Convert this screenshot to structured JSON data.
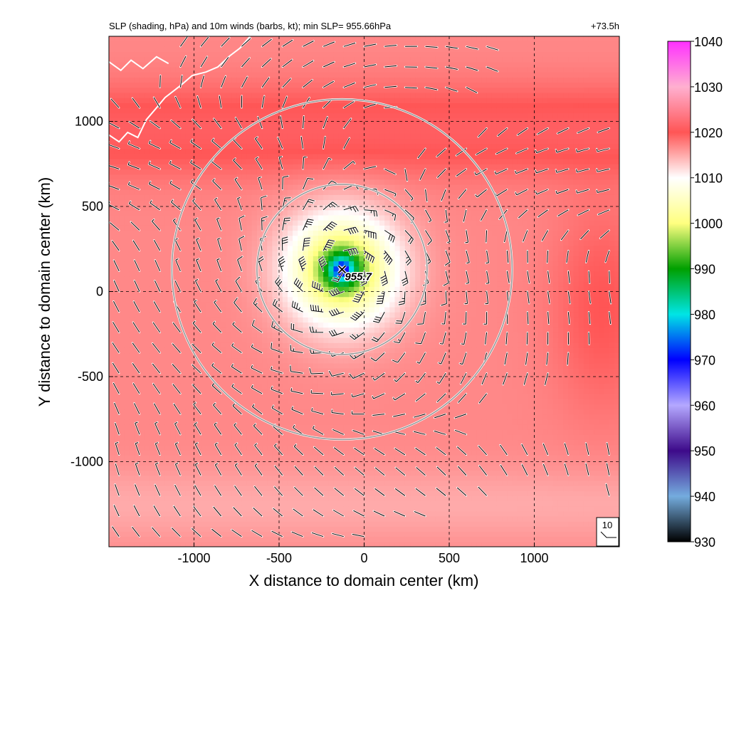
{
  "chart_data": {
    "type": "heatmap",
    "title": "SLP (shading, hPa) and 10m winds (barbs, kt); min SLP= 955.66hPa",
    "forecast_hour_label": "+73.5h",
    "xlabel": "X distance to domain center (km)",
    "ylabel": "Y distance to domain center (km)",
    "xlim": [
      -1500,
      1500
    ],
    "ylim": [
      -1500,
      1500
    ],
    "x_ticks": [
      -1000,
      -500,
      0,
      500,
      1000
    ],
    "y_ticks": [
      -1000,
      -500,
      0,
      500,
      1000
    ],
    "x_tick_labels": [
      "-1000",
      "-500",
      "0",
      "500",
      "1000"
    ],
    "y_tick_labels": [
      "-1000",
      "-500",
      "0",
      "500",
      "1000"
    ],
    "grid": true,
    "field": {
      "name": "SLP",
      "units": "hPa",
      "min_value": 955.66,
      "min_location": [
        -130,
        130
      ],
      "min_label": "955.7",
      "environment_value": 1017,
      "high_pressure_band_y": 950,
      "high_pressure_band_value": 1021
    },
    "range_rings": [
      {
        "center": [
          -130,
          130
        ],
        "radius_km": 500
      },
      {
        "center": [
          -130,
          130
        ],
        "radius_km": 1000
      }
    ],
    "colorbar": {
      "min": 930,
      "max": 1040,
      "ticks": [
        930,
        940,
        950,
        960,
        970,
        980,
        990,
        1000,
        1010,
        1020,
        1030,
        1040
      ],
      "tick_labels": [
        "930",
        "940",
        "950",
        "960",
        "970",
        "980",
        "990",
        "1000",
        "1010",
        "1020",
        "1030",
        "1040"
      ],
      "stops": [
        {
          "value": 930,
          "color": "#000000"
        },
        {
          "value": 940,
          "color": "#74acde"
        },
        {
          "value": 950,
          "color": "#3d0a8a"
        },
        {
          "value": 960,
          "color": "#b4a8ff"
        },
        {
          "value": 970,
          "color": "#0000ff"
        },
        {
          "value": 980,
          "color": "#00e5e5"
        },
        {
          "value": 990,
          "color": "#00a000"
        },
        {
          "value": 1000,
          "color": "#ffff80"
        },
        {
          "value": 1010,
          "color": "#ffffff"
        },
        {
          "value": 1020,
          "color": "#ff5555"
        },
        {
          "value": 1030,
          "color": "#ffb0d0"
        },
        {
          "value": 1040,
          "color": "#ff30ff"
        }
      ]
    },
    "reference_barb": {
      "label": "10",
      "speed_kt": 10
    },
    "wind_barbs": {
      "spacing_km": 120,
      "units": "kt"
    },
    "colors": {
      "ring": "#9a9a9a",
      "coastline": "#ffffff",
      "grid": "#000000",
      "center_marker": "#000000"
    }
  }
}
